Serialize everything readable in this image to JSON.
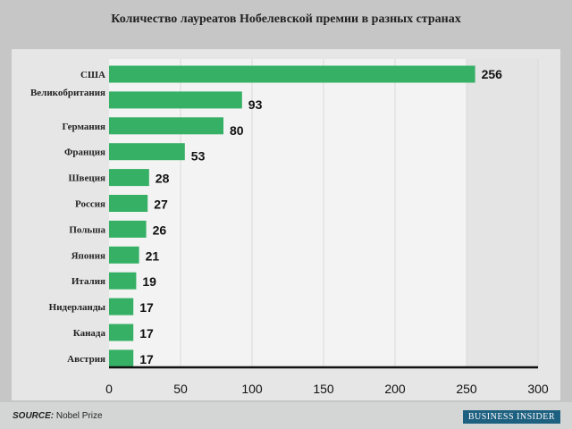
{
  "chart_data": {
    "type": "bar",
    "orientation": "horizontal",
    "title": "Количество лауреатов Нобелевской премии в разных странах",
    "categories": [
      "США",
      "Великобритания",
      "Германия",
      "Франция",
      "Швеция",
      "Россия",
      "Польша",
      "Япония",
      "Италия",
      "Нидерланды",
      "Канада",
      "Австрия"
    ],
    "values": [
      256,
      93,
      80,
      53,
      28,
      27,
      26,
      21,
      19,
      17,
      17,
      17
    ],
    "xlim": [
      0,
      300
    ],
    "xticks": [
      0,
      50,
      100,
      150,
      200,
      250,
      300
    ],
    "xlabel": "",
    "ylabel": "",
    "grid": true,
    "bar_color": "#35b064"
  },
  "footer": {
    "source_label": "SOURCE:",
    "source_text": " Nobel Prize",
    "brand": "BUSINESS INSIDER"
  }
}
